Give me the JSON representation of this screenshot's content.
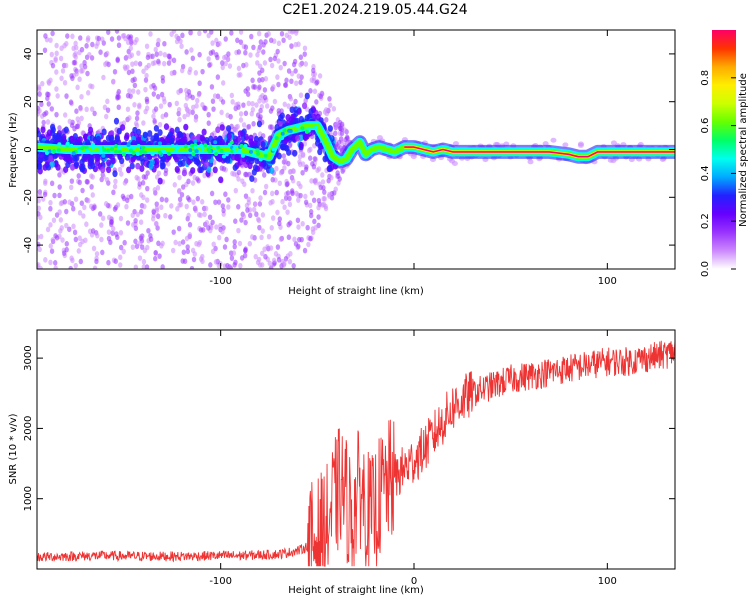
{
  "page_title": "C2E1.2024.219.05.44.G24",
  "chart_data": [
    {
      "type": "heatmap",
      "xlabel": "Height of straight line (km)",
      "ylabel": "Frequency (Hz)",
      "xlim": [
        -195,
        135
      ],
      "ylim": [
        -50,
        50
      ],
      "xticks": [
        -100,
        0,
        100
      ],
      "xtick_labels": [
        "-100",
        "",
        "100"
      ],
      "yticks": [
        -40,
        -20,
        0,
        20,
        40
      ],
      "ytick_labels": [
        "-40",
        "-20",
        "0",
        "20",
        "40"
      ],
      "colorbar": {
        "label": "Normalized spectral amplitude",
        "range": [
          0,
          1
        ],
        "ticks": [
          0.0,
          0.2,
          0.4,
          0.6,
          0.8
        ],
        "tick_labels": [
          "0.0",
          "0.2",
          "0.4",
          "0.6",
          "0.8"
        ],
        "colors": [
          "#ffffff",
          "#cc88ff",
          "#9933ff",
          "#6600ff",
          "#2222ff",
          "#00aaff",
          "#00ffee",
          "#00ff66",
          "#66ff00",
          "#ccff00",
          "#ffee00",
          "#ffaa00",
          "#ff3300",
          "#ff0066"
        ]
      },
      "ridge": {
        "x": [
          -195,
          -180,
          -160,
          -140,
          -120,
          -100,
          -90,
          -80,
          -75,
          -70,
          -65,
          -60,
          -55,
          -50,
          -46,
          -42,
          -38,
          -35,
          -32,
          -28,
          -25,
          -22,
          -18,
          -14,
          -10,
          -5,
          0,
          5,
          10,
          15,
          20,
          25,
          30,
          40,
          50,
          60,
          70,
          80,
          85,
          90,
          95,
          100,
          110,
          120,
          135
        ],
        "y": [
          1,
          0,
          0,
          0,
          0,
          0,
          0,
          -2,
          -3,
          6,
          8,
          9,
          10,
          10,
          4,
          -3,
          -5,
          -4,
          0,
          3,
          -2,
          0,
          1,
          0,
          -1,
          1,
          1,
          0,
          -1,
          0,
          -1,
          -1,
          -1,
          -1,
          -1,
          -1,
          -1,
          -2,
          -3,
          -3,
          -1,
          -1,
          -1,
          -1,
          -1
        ]
      },
      "grid": false
    },
    {
      "type": "line",
      "xlabel": "Height of straight line (km)",
      "ylabel": "SNR (10 * v/v)",
      "xlim": [
        -195,
        135
      ],
      "ylim": [
        0,
        3400
      ],
      "xticks": [
        -100,
        0,
        100
      ],
      "xtick_labels": [
        "-100",
        "0",
        "100"
      ],
      "yticks": [
        1000,
        2000,
        3000
      ],
      "ytick_labels": [
        "1000",
        "2000",
        "3000"
      ],
      "color": "#ee3333",
      "series": [
        {
          "x": [
            -195,
            -180,
            -160,
            -140,
            -120,
            -100,
            -90,
            -80,
            -70,
            -60,
            -55,
            -50,
            -45,
            -42,
            -38,
            -35,
            -32,
            -28,
            -25,
            -22,
            -18,
            -14,
            -10,
            -6,
            -2,
            0,
            5,
            10,
            15,
            20,
            25,
            30,
            40,
            50,
            60,
            70,
            80,
            90,
            100,
            110,
            120,
            130,
            135
          ],
          "y": [
            170,
            180,
            190,
            180,
            180,
            190,
            190,
            200,
            210,
            260,
            320,
            420,
            600,
            900,
            1200,
            1000,
            700,
            1200,
            900,
            700,
            1000,
            1200,
            1300,
            1400,
            1500,
            1550,
            1700,
            1900,
            2100,
            2300,
            2400,
            2500,
            2600,
            2700,
            2750,
            2800,
            2850,
            2900,
            2950,
            2950,
            3000,
            3050,
            3100
          ]
        }
      ],
      "grid": false
    }
  ]
}
